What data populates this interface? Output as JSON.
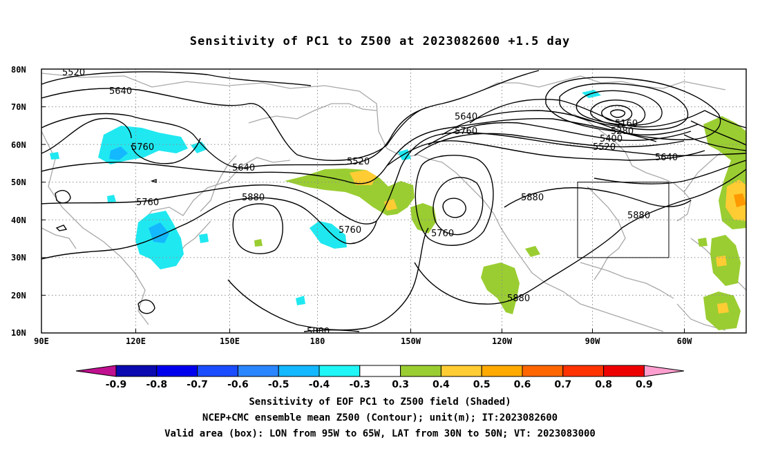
{
  "title": "Sensitivity of PC1 to Z500 at 2023082600 +1.5 day",
  "map": {
    "lon_labels": [
      "90E",
      "120E",
      "150E",
      "180",
      "150W",
      "120W",
      "90W",
      "60W"
    ],
    "lat_labels": [
      "80N",
      "70N",
      "60N",
      "50N",
      "40N",
      "30N",
      "20N",
      "10N"
    ],
    "contour_labels": [
      "5520",
      "5640",
      "5760",
      "5640",
      "5880",
      "5760",
      "5880",
      "5760",
      "5520",
      "5640",
      "5760",
      "5160",
      "5280",
      "5400",
      "5520",
      "5640",
      "5880",
      "5760",
      "5880",
      "5880"
    ],
    "box": {
      "lon_from": "95W",
      "lon_to": "65W",
      "lat_from": "30N",
      "lat_to": "50N"
    }
  },
  "colorbar": {
    "labels": [
      "-0.9",
      "-0.8",
      "-0.7",
      "-0.6",
      "-0.5",
      "-0.4",
      "-0.3",
      "0.3",
      "0.4",
      "0.5",
      "0.6",
      "0.7",
      "0.8",
      "0.9"
    ],
    "colors": {
      "below": "#c0108f",
      "bins": [
        "#0a0ab0",
        "#0000ee",
        "#1a4dff",
        "#2a86ff",
        "#14b8ff",
        "#20f6f6",
        "#ffffff",
        "#9acd32",
        "#ffcc33",
        "#ffaa00",
        "#ff6600",
        "#ff3300",
        "#ee0000"
      ],
      "above": "#ff9fd0"
    }
  },
  "caption": {
    "line1": "Sensitivity of EOF PC1 to Z500 field (Shaded)",
    "line2": "NCEP+CMC ensemble mean Z500 (Contour); unit(m); IT:2023082600",
    "line3": "Valid area (box): LON from 95W to 65W, LAT from 30N to 50N; VT: 2023083000"
  }
}
